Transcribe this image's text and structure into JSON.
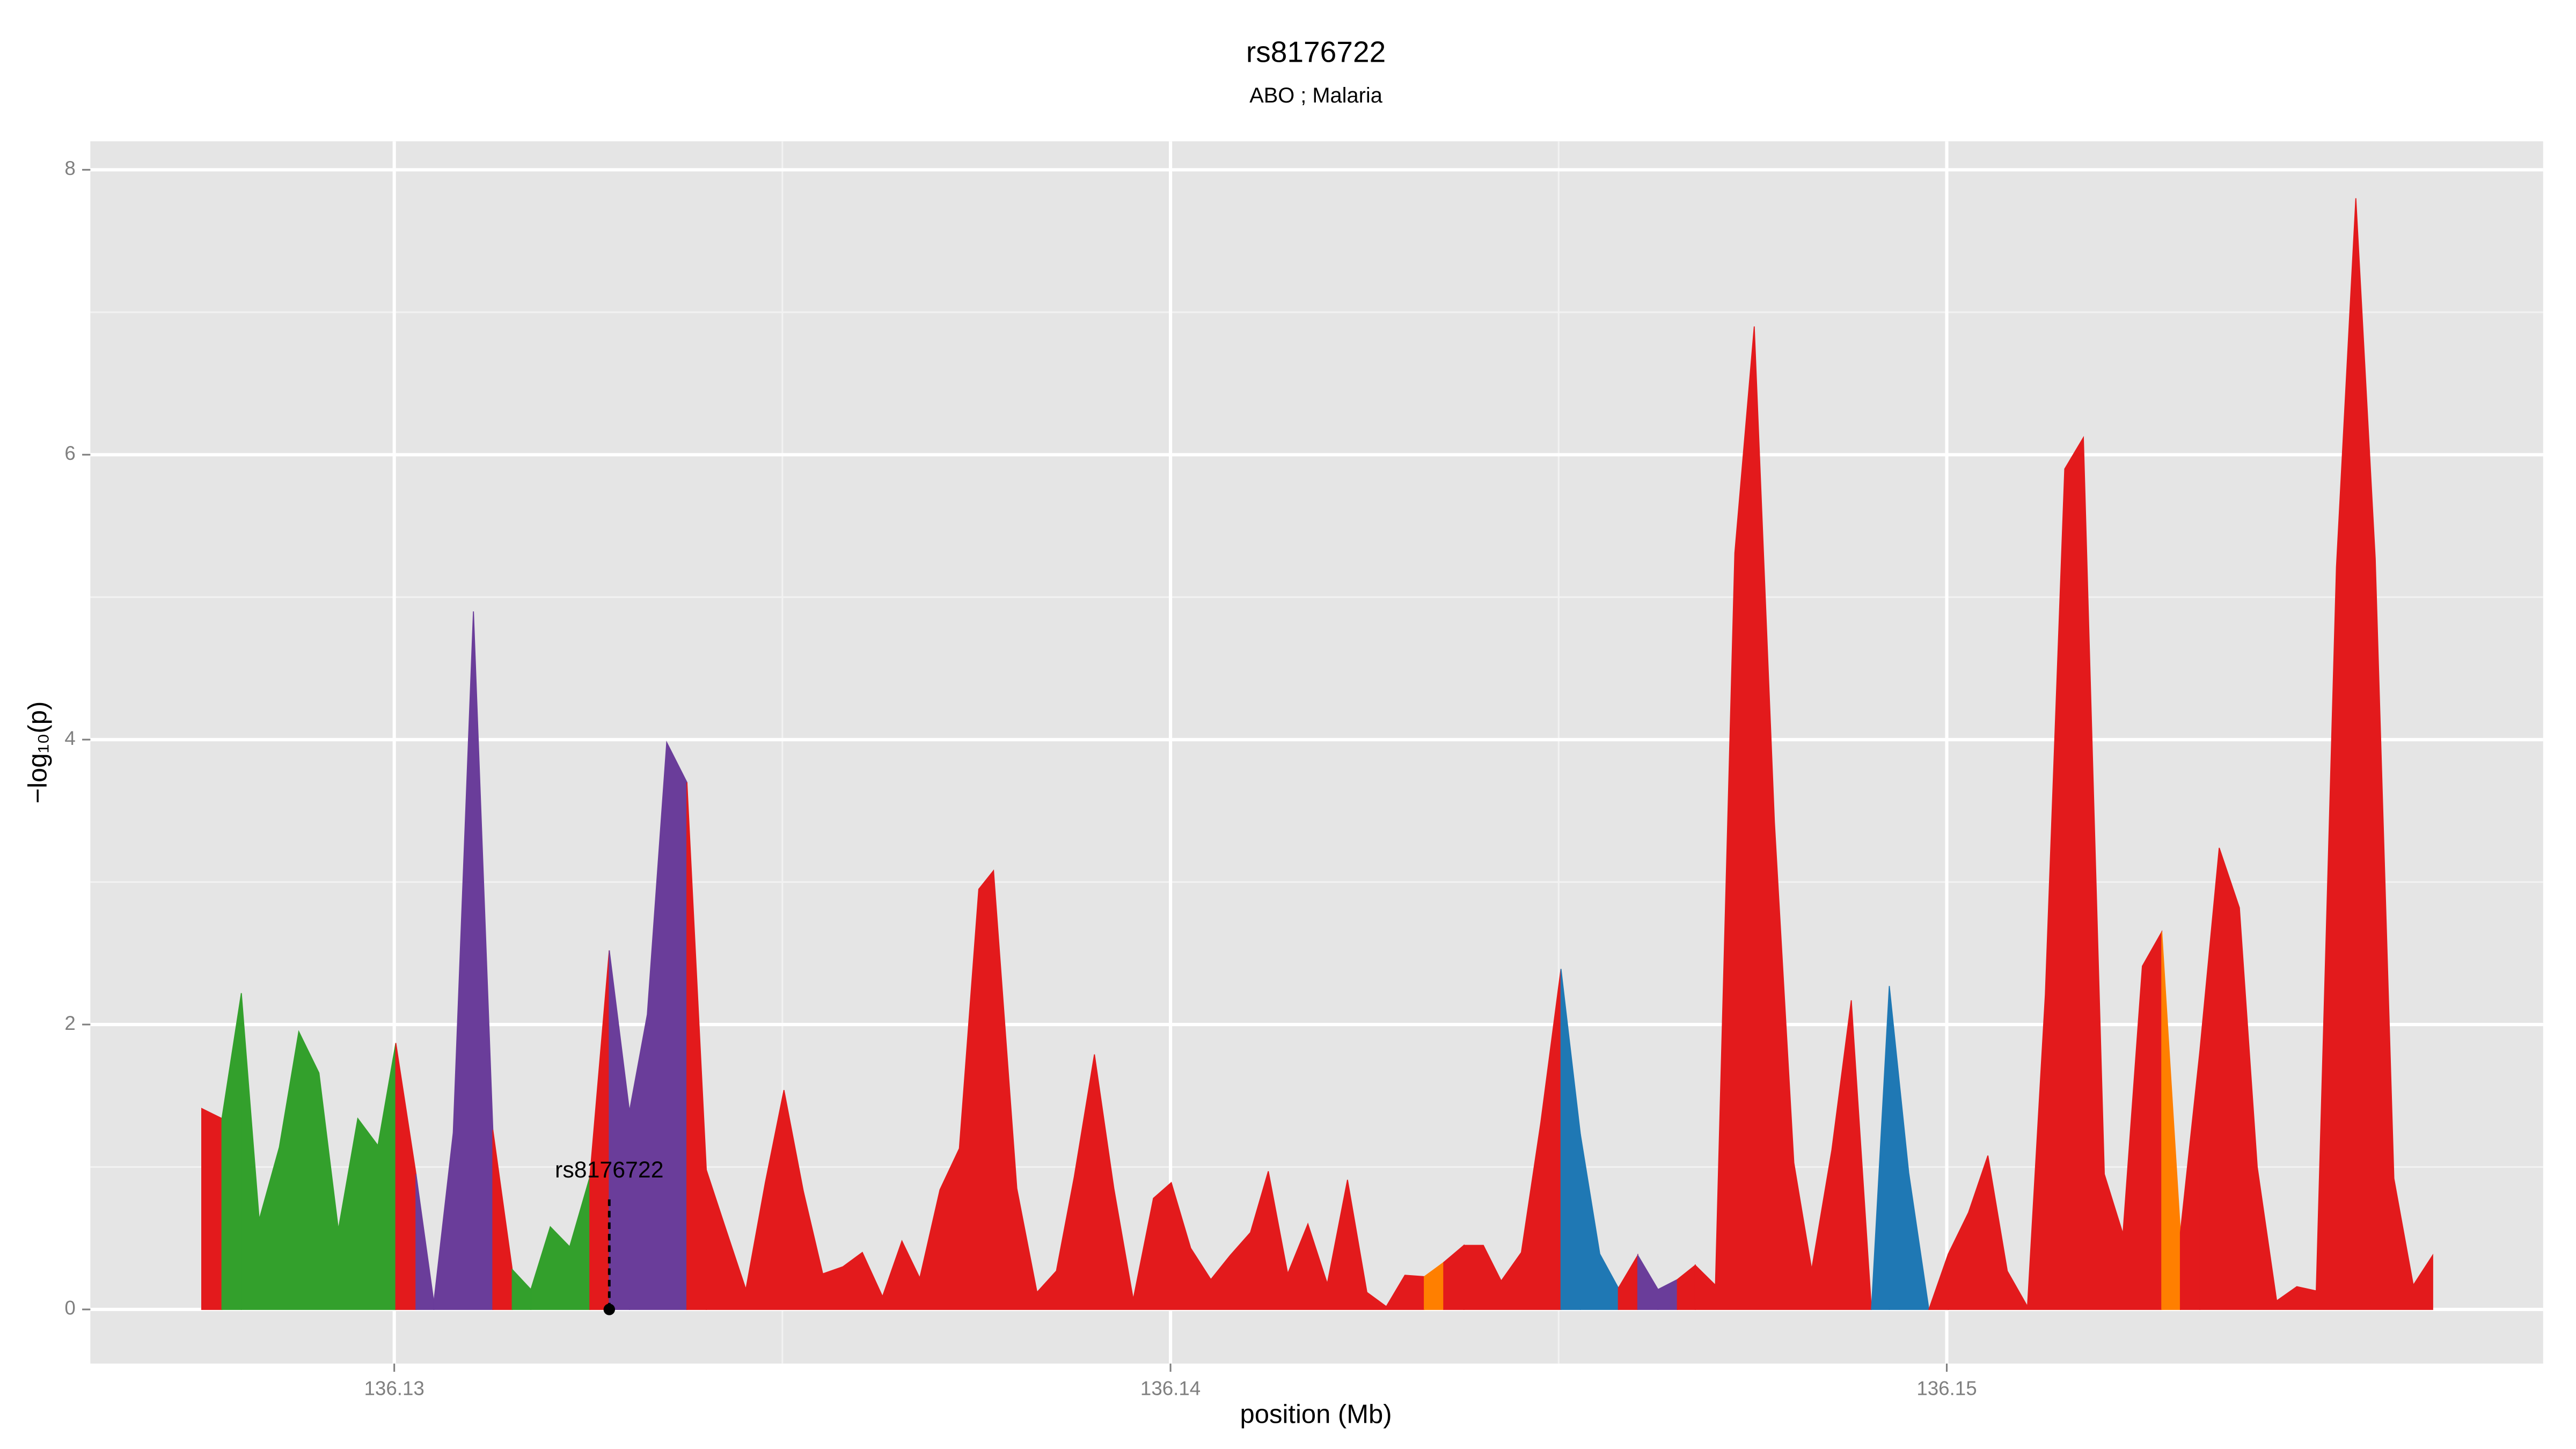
{
  "chart_data": {
    "type": "area",
    "title": "rs8176722",
    "subtitle": "ABO ; Malaria",
    "xlabel": "position (Mb)",
    "ylabel": "−log₁₀(p)",
    "xlim": [
      136.126085,
      136.157683
    ],
    "ylim": [
      -0.38,
      8.2
    ],
    "xticks": [
      136.13,
      136.14,
      136.15
    ],
    "yticks": [
      0,
      2,
      4,
      6,
      8
    ],
    "x_minor_grid": [
      136.135,
      136.145
    ],
    "y_minor_grid": [
      1,
      3,
      5,
      7
    ],
    "grid": true,
    "highlight": {
      "label": "rs8176722",
      "x": 136.13277,
      "value": 0
    },
    "series": [
      {
        "color": "#e31a1c",
        "x": [
          136.12752,
          136.12778
        ],
        "values": [
          1.41,
          1.34
        ]
      },
      {
        "color": "#33a02c",
        "x": [
          136.12803,
          136.12826,
          136.12852,
          136.12877,
          136.12903,
          136.12928,
          136.12953,
          136.12979,
          136.13002
        ],
        "values": [
          2.22,
          0.63,
          1.14,
          1.95,
          1.66,
          0.56,
          1.34,
          1.15,
          1.87
        ]
      },
      {
        "color": "#e31a1c",
        "x": [
          136.13028
        ],
        "values": [
          0.95
        ]
      },
      {
        "color": "#6a3d9a",
        "x": [
          136.13051,
          136.13076,
          136.13102,
          136.13127
        ],
        "values": [
          0.05,
          1.24,
          4.9,
          1.26
        ]
      },
      {
        "color": "#e31a1c",
        "x": [
          136.13152
        ],
        "values": [
          0.28
        ]
      },
      {
        "color": "#33a02c",
        "x": [
          136.13176,
          136.13201,
          136.13226,
          136.13252
        ],
        "values": [
          0.14,
          0.58,
          0.44,
          0.93
        ]
      },
      {
        "color": "#e31a1c",
        "x": [
          136.13277
        ],
        "values": [
          2.52
        ]
      },
      {
        "color": "#6a3d9a",
        "x": [
          136.13303,
          136.13326,
          136.13351,
          136.13377
        ],
        "values": [
          1.39,
          2.07,
          3.98,
          3.7
        ]
      },
      {
        "color": "#e31a1c",
        "x": [
          136.13402,
          136.13428,
          136.13453,
          136.13478,
          136.13502,
          136.13527,
          136.13552,
          136.13578,
          136.13603,
          136.13629,
          136.13654,
          136.13677,
          136.13703,
          136.13728,
          136.13753,
          136.13772,
          136.13802,
          136.13828,
          136.13853,
          136.13876,
          136.13902,
          136.13927,
          136.13952,
          136.13978,
          136.14001,
          136.14026,
          136.14052,
          136.14077,
          136.14103,
          136.14126,
          136.14151,
          136.14177,
          136.14202,
          136.14228,
          136.14253,
          136.14278,
          136.14302,
          136.14327
        ],
        "values": [
          0.98,
          0.55,
          0.14,
          0.89,
          1.54,
          0.83,
          0.25,
          0.3,
          0.4,
          0.09,
          0.48,
          0.22,
          0.84,
          1.13,
          2.95,
          3.08,
          0.85,
          0.12,
          0.27,
          0.93,
          1.79,
          0.85,
          0.07,
          0.78,
          0.89,
          0.43,
          0.21,
          0.38,
          0.54,
          0.97,
          0.25,
          0.6,
          0.18,
          0.91,
          0.12,
          0.02,
          0.24,
          0.23
        ]
      },
      {
        "color": "#ff7f00",
        "x": [
          136.14352
        ],
        "values": [
          0.33
        ]
      },
      {
        "color": "#e31a1c",
        "x": [
          136.14378,
          136.14403,
          136.14426,
          136.14452,
          136.14477,
          136.14503
        ],
        "values": [
          0.45,
          0.45,
          0.2,
          0.4,
          1.31,
          2.39
        ]
      },
      {
        "color": "#1f78b4",
        "x": [
          136.14528,
          136.14553,
          136.14577
        ],
        "values": [
          1.23,
          0.39,
          0.15
        ]
      },
      {
        "color": "#e31a1c",
        "x": [
          136.14602
        ],
        "values": [
          0.38
        ]
      },
      {
        "color": "#6a3d9a",
        "x": [
          136.14628,
          136.14653
        ],
        "values": [
          0.14,
          0.21
        ]
      },
      {
        "color": "#e31a1c",
        "x": [
          136.14676,
          136.14702,
          136.14727,
          136.14752,
          136.14778,
          136.14803,
          136.14826,
          136.14852,
          136.14877,
          136.14903
        ],
        "values": [
          0.31,
          0.17,
          5.31,
          6.9,
          3.42,
          1.03,
          0.28,
          1.12,
          2.17,
          0
        ]
      },
      {
        "color": "#1f78b4",
        "x": [
          136.14926,
          136.14951,
          136.14977
        ],
        "values": [
          2.27,
          0.96,
          0
        ]
      },
      {
        "color": "#e31a1c",
        "x": [
          136.15002,
          136.15028,
          136.15053,
          136.15078,
          136.15104,
          136.15127,
          136.15152,
          136.15176,
          136.15203,
          136.15227,
          136.15252,
          136.15277
        ],
        "values": [
          0.39,
          0.68,
          1.08,
          0.27,
          0.02,
          2.21,
          5.9,
          6.12,
          0.95,
          0.53,
          2.41,
          2.65
        ]
      },
      {
        "color": "#ff7f00",
        "x": [
          136.15301
        ],
        "values": [
          0.54
        ]
      },
      {
        "color": "#e31a1c",
        "x": [
          136.15326,
          136.15351,
          136.15377,
          136.154,
          136.15425,
          136.15451,
          136.15476,
          136.15502,
          136.15527,
          136.15552,
          136.15576,
          136.15601,
          136.15626
        ],
        "values": [
          1.81,
          3.24,
          2.82,
          1.0,
          0.06,
          0.16,
          0.13,
          5.21,
          7.8,
          5.27,
          0.92,
          0.17,
          0.38
        ]
      }
    ]
  }
}
